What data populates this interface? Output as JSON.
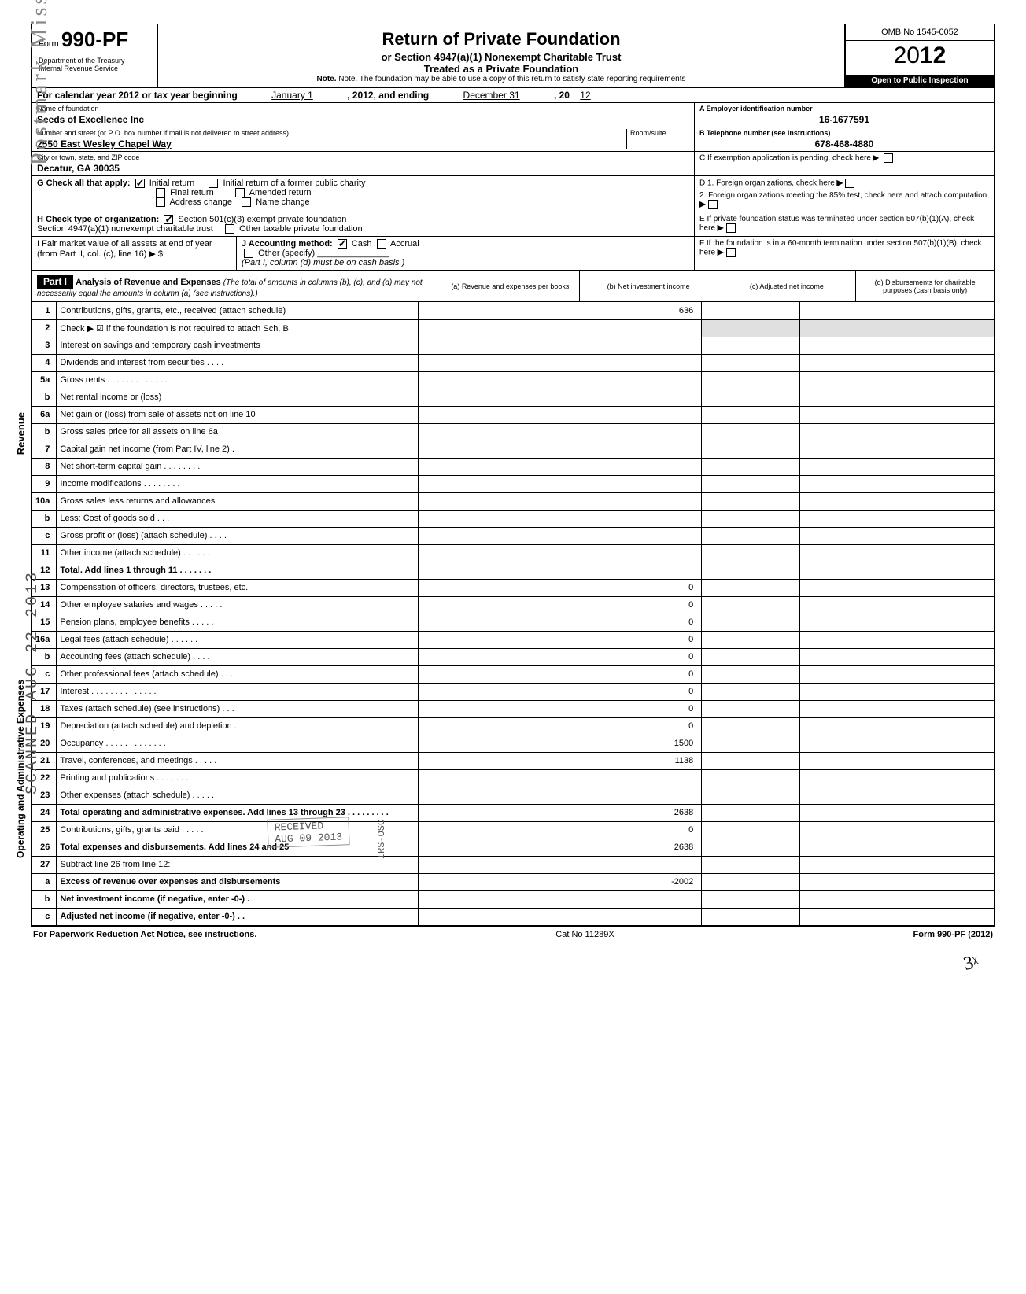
{
  "form": {
    "label": "Form",
    "number": "990-PF",
    "dept1": "Department of the Treasury",
    "dept2": "Internal Revenue Service",
    "title": "Return of Private Foundation",
    "subtitle1": "or Section 4947(a)(1) Nonexempt Charitable Trust",
    "subtitle2": "Treated as a Private Foundation",
    "note": "Note. The foundation may be able to use a copy of this return to satisfy state reporting requirements",
    "omb": "OMB No 1545-0052",
    "year_prefix": "20",
    "year_bold": "12",
    "inspection": "Open to Public Inspection"
  },
  "calyear": {
    "text_a": "For calendar year 2012 or tax year beginning",
    "begin": "January 1",
    "mid": ", 2012, and ending",
    "end": "December 31",
    "end2": ", 20",
    "end_yr": "12"
  },
  "entity": {
    "name_label": "Name of foundation",
    "name": "Seeds of Excellence Inc",
    "addr_label": "Number and street (or P O. box number if mail is not delivered to street address)",
    "room_label": "Room/suite",
    "addr": "2550 East Wesley Chapel Way",
    "city_label": "City or town, state, and ZIP code",
    "city": "Decatur, GA 30035",
    "ein_label": "A Employer identification number",
    "ein": "16-1677591",
    "phone_label": "B Telephone number (see instructions)",
    "phone": "678-468-4880",
    "c_label": "C  If exemption application is pending, check here ▶"
  },
  "sectionG": {
    "label": "G  Check all that apply:",
    "opts": {
      "initial": "Initial return",
      "initial_former": "Initial return of a former public charity",
      "final": "Final return",
      "amended": "Amended return",
      "addr_change": "Address change",
      "name_change": "Name change"
    },
    "initial_checked": true
  },
  "sectionD": {
    "d1": "D  1. Foreign organizations, check here",
    "d2": "2. Foreign organizations meeting the 85% test, check here and attach computation"
  },
  "sectionH": {
    "label": "H  Check type of organization:",
    "opt1": "Section 501(c)(3) exempt private foundation",
    "opt2": "Section 4947(a)(1) nonexempt charitable trust",
    "opt3": "Other taxable private foundation",
    "opt1_checked": true
  },
  "sectionE": {
    "text": "E  If private foundation status was terminated under section 507(b)(1)(A), check here"
  },
  "sectionI": {
    "label": "I  Fair market value of all assets at end of year (from Part II, col. (c), line 16) ▶ $"
  },
  "sectionJ": {
    "label": "J  Accounting method:",
    "cash": "Cash",
    "accrual": "Accrual",
    "other": "Other (specify)",
    "note": "(Part I, column (d) must be on cash basis.)",
    "cash_checked": true
  },
  "sectionF": {
    "text": "F  If the foundation is in a 60-month termination under section 507(b)(1)(B), check here"
  },
  "part1": {
    "label": "Part I",
    "title": "Analysis of Revenue and Expenses",
    "title_note": "(The total of amounts in columns (b), (c), and (d) may not necessarily equal the amounts in column (a) (see instructions).)",
    "col_a": "(a) Revenue and expenses per books",
    "col_b": "(b) Net investment income",
    "col_c": "(c) Adjusted net income",
    "col_d": "(d) Disbursements for charitable purposes (cash basis only)"
  },
  "side_labels": {
    "revenue": "Revenue",
    "expenses": "Operating and Administrative Expenses"
  },
  "lines": [
    {
      "n": "1",
      "d": "Contributions, gifts, grants, etc., received (attach schedule)",
      "a": "636"
    },
    {
      "n": "2",
      "d": "Check ▶ ☑ if the foundation is not required to attach Sch. B",
      "shade_bcd": true
    },
    {
      "n": "3",
      "d": "Interest on savings and temporary cash investments"
    },
    {
      "n": "4",
      "d": "Dividends and interest from securities  .  .  .  ."
    },
    {
      "n": "5a",
      "d": "Gross rents  .  .  .  .  .  .  .  .  .  .  .  .  ."
    },
    {
      "n": "b",
      "d": "Net rental income or (loss)"
    },
    {
      "n": "6a",
      "d": "Net gain or (loss) from sale of assets not on line 10"
    },
    {
      "n": "b",
      "d": "Gross sales price for all assets on line 6a"
    },
    {
      "n": "7",
      "d": "Capital gain net income (from Part IV, line 2)  .  ."
    },
    {
      "n": "8",
      "d": "Net short-term capital gain  .  .  .  .  .  .  .  ."
    },
    {
      "n": "9",
      "d": "Income modifications   .  .  .  .  .  .  .  ."
    },
    {
      "n": "10a",
      "d": "Gross sales less returns and allowances"
    },
    {
      "n": "b",
      "d": "Less: Cost of goods sold   .  .  ."
    },
    {
      "n": "c",
      "d": "Gross profit or (loss) (attach schedule)  .  .  .  ."
    },
    {
      "n": "11",
      "d": "Other income (attach schedule)  .  .  .  .  .  ."
    },
    {
      "n": "12",
      "d": "Total. Add lines 1 through 11  .  .  .  .  .  .  .",
      "bold": true
    },
    {
      "n": "13",
      "d": "Compensation of officers, directors, trustees, etc.",
      "a": "0"
    },
    {
      "n": "14",
      "d": "Other employee salaries and wages  .  .  .  .  .",
      "a": "0"
    },
    {
      "n": "15",
      "d": "Pension plans, employee benefits   .  .  .  .  .",
      "a": "0"
    },
    {
      "n": "16a",
      "d": "Legal fees (attach schedule)   .  .  .  .  .  .",
      "a": "0"
    },
    {
      "n": "b",
      "d": "Accounting fees (attach schedule)   .  .  .  .",
      "a": "0"
    },
    {
      "n": "c",
      "d": "Other professional fees (attach schedule)  .  .  .",
      "a": "0"
    },
    {
      "n": "17",
      "d": "Interest  .  .  .  .  .  .  .  .  .  .  .  .  .  .",
      "a": "0"
    },
    {
      "n": "18",
      "d": "Taxes (attach schedule) (see instructions)  .  .  .",
      "a": "0"
    },
    {
      "n": "19",
      "d": "Depreciation (attach schedule) and depletion  .",
      "a": "0"
    },
    {
      "n": "20",
      "d": "Occupancy  .  .  .  .  .  .  .  .  .  .  .  .  .",
      "a": "1500"
    },
    {
      "n": "21",
      "d": "Travel, conferences, and meetings  .  .  .  .  .",
      "a": "1138"
    },
    {
      "n": "22",
      "d": "Printing and publications   .  .  .  .  .  .  ."
    },
    {
      "n": "23",
      "d": "Other expenses (attach schedule)  .  .  .  .  ."
    },
    {
      "n": "24",
      "d": "Total operating and administrative expenses. Add lines 13 through 23  .  .  .  .  .  .  .  .  .",
      "a": "2638",
      "bold": true
    },
    {
      "n": "25",
      "d": "Contributions, gifts, grants paid   .  .  .  .  .",
      "a": "0"
    },
    {
      "n": "26",
      "d": "Total expenses and disbursements. Add lines 24 and 25",
      "a": "2638",
      "bold": true
    },
    {
      "n": "27",
      "d": "Subtract line 26 from line 12:"
    },
    {
      "n": "a",
      "d": "Excess of revenue over expenses and disbursements",
      "a": "-2002",
      "bold": true
    },
    {
      "n": "b",
      "d": "Net investment income (if negative, enter -0-)  .",
      "bold": true
    },
    {
      "n": "c",
      "d": "Adjusted net income (if negative, enter -0-)  .  .",
      "bold": true
    }
  ],
  "footer": {
    "left": "For Paperwork Reduction Act Notice, see instructions.",
    "mid": "Cat No  11289X",
    "right": "Form 990-PF (2012)"
  },
  "stamps": {
    "postmark": "Postmark Missing",
    "scanned": "SCANNED AUG 22 2013",
    "received": "RECEIVED",
    "date": "AUG 09 2013",
    "irs": "IRS-OSC",
    "init": "3ᵡ"
  }
}
